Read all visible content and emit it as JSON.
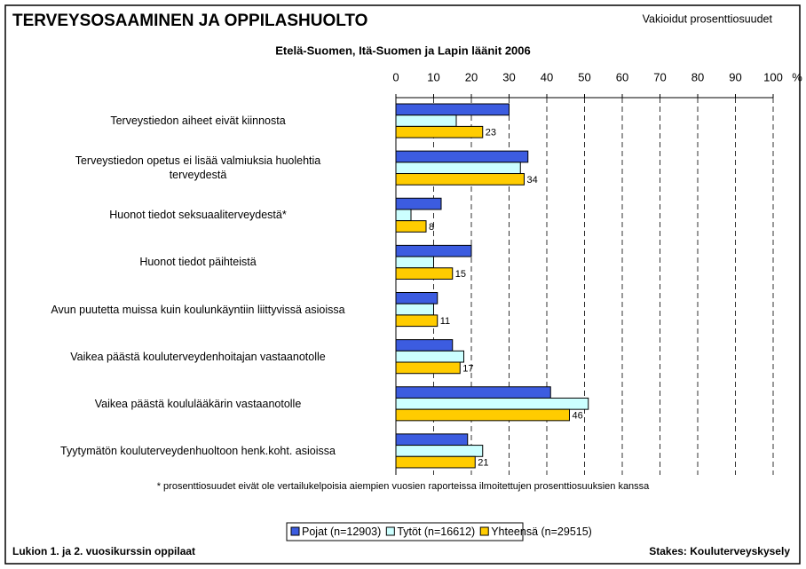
{
  "chart_data": {
    "type": "hbar",
    "title": "TERVEYSOSAAMINEN JA OPPILASHUOLTO",
    "subtitle": "Etelä-Suomen, Itä-Suomen ja Lapin läänit 2006",
    "note_top": "Vakioidut prosenttiosuudet",
    "xlabel": "%",
    "footnote": "* prosenttiosuudet eivät ole vertailukelpoisia aiempien vuosien raporteissa ilmoitettujen prosenttiosuuksien kanssa",
    "source_left": "Lukion 1. ja 2. vuosikurssin oppilaat",
    "source_right": "Stakes: Kouluterveyskysely",
    "categories": [
      "Terveystiedon aiheet eivät kiinnosta",
      "Terveystiedon opetus ei lisää valmiuksia huolehtia\nterveydestä",
      "Huonot tiedot seksuaaliterveydestä*",
      "Huonot tiedot päihteistä",
      "Avun puutetta muissa kuin koulunkäyntiin liittyvissä asioissa",
      "Vaikea päästä kouluterveydenhoitajan vastaanotolle",
      "Vaikea päästä koululääkärin vastaanotolle",
      "Tyytymätön kouluterveydenhuoltoon henk.koht. asioissa"
    ],
    "series": [
      {
        "name": "Pojat (n=12903)",
        "color": "#3c5ce0",
        "values": [
          30,
          35,
          12,
          20,
          11,
          15,
          41,
          19
        ]
      },
      {
        "name": "Tytöt (n=16612)",
        "color": "#ccffff",
        "values": [
          16,
          33,
          4,
          10,
          10,
          18,
          51,
          23
        ]
      },
      {
        "name": "Yhteensä (n=29515)",
        "color": "#ffcc00",
        "values": [
          23,
          34,
          8,
          15,
          11,
          17,
          46,
          21
        ],
        "labels": true
      }
    ],
    "xlim": [
      0,
      100
    ],
    "xticks": [
      0,
      10,
      20,
      30,
      40,
      50,
      60,
      70,
      80,
      90,
      100
    ],
    "grid": true
  }
}
